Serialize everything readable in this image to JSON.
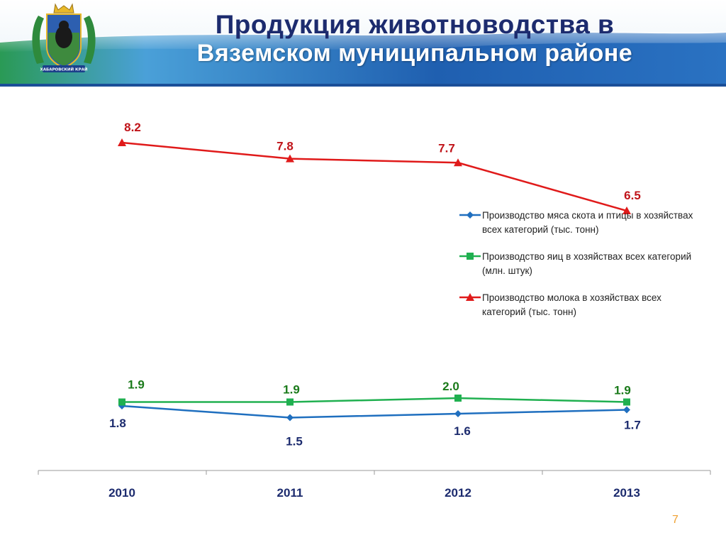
{
  "header": {
    "title_line1": "Продукция животноводства в",
    "title_line2": "Вяземском муниципальном районе",
    "emblem_icon": "khabarovsk-krai-coat-of-arms",
    "emblem_text": "ХАБАРОВСКИЙ КРАЙ"
  },
  "chart_data": {
    "type": "line",
    "categories": [
      "2010",
      "2011",
      "2012",
      "2013"
    ],
    "series": [
      {
        "name": "Производство мяса скота и птицы в хозяйствах всех категорий (тыс. тонн)",
        "values": [
          1.8,
          1.5,
          1.6,
          1.7
        ],
        "labels": [
          "1.8",
          "1.5",
          "1.6",
          "1.7"
        ],
        "color": "#1f6fbf",
        "label_color": "#1c2b6e",
        "marker": "diamond"
      },
      {
        "name": "Производство яиц в хозяйствах всех категорий (млн. штук)",
        "values": [
          1.9,
          1.9,
          2.0,
          1.9
        ],
        "labels": [
          "1.9",
          "1.9",
          "2.0",
          "1.9"
        ],
        "color": "#20b050",
        "label_color": "#1a7a1a",
        "marker": "square"
      },
      {
        "name": "Производство молока в хозяйствах всех категорий (тыс. тонн)",
        "values": [
          8.2,
          7.8,
          7.7,
          6.5
        ],
        "labels": [
          "8.2",
          "7.8",
          "7.7",
          "6.5"
        ],
        "color": "#e01a1a",
        "label_color": "#c0141a",
        "marker": "triangle"
      }
    ],
    "legend_position": "right",
    "grid": false
  },
  "legend": {
    "items": [
      {
        "label": "Производство мяса скота и птицы в хозяйствах всех категорий (тыс. тонн)"
      },
      {
        "label": "Производство яиц в хозяйствах всех категорий (млн. штук)"
      },
      {
        "label": "Производство молока в хозяйствах всех категорий (тыс. тонн)"
      }
    ]
  },
  "footer": {
    "page_number": "7"
  }
}
